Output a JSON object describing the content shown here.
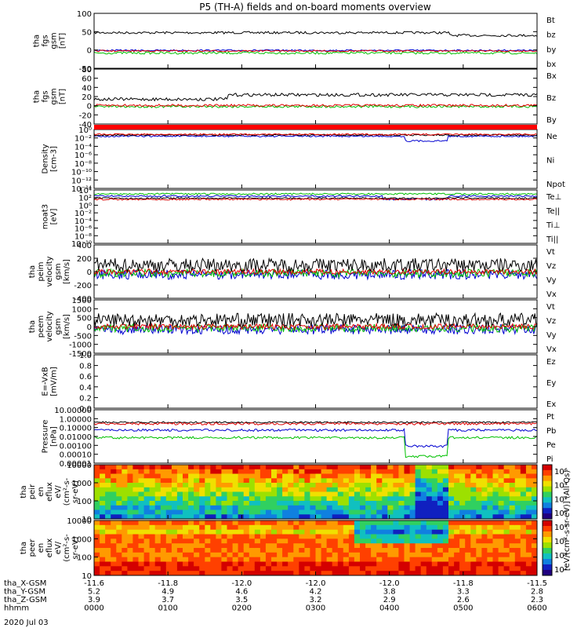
{
  "chart_data": {
    "type": "line",
    "title": "P5 (TH-A) fields and on-board moments overview",
    "date": "2020 Jul 03",
    "time_ticks": [
      "0000",
      "0100",
      "0200",
      "0300",
      "0400",
      "0500",
      "0600"
    ],
    "ephemeris": [
      {
        "label": "tha_X-GSM",
        "values": [
          "-11.6",
          "-11.8",
          "-12.0",
          "-12.0",
          "-12.0",
          "-11.8",
          "-11.5"
        ]
      },
      {
        "label": "tha_Y-GSM",
        "values": [
          "5.2",
          "4.9",
          "4.6",
          "4.2",
          "3.8",
          "3.3",
          "2.8"
        ]
      },
      {
        "label": "tha_Z-GSM",
        "values": [
          "3.9",
          "3.7",
          "3.5",
          "3.2",
          "2.9",
          "2.6",
          "2.3"
        ]
      },
      {
        "label": "hhmm",
        "values": [
          "0000",
          "0100",
          "0200",
          "0300",
          "0400",
          "0500",
          "0600"
        ]
      }
    ],
    "panels": [
      {
        "ylabel": [
          "tha",
          "fgs",
          "gsm",
          "[nT]"
        ],
        "yticks": [
          "100",
          "50",
          "0",
          "-50"
        ],
        "ylim": [
          -50,
          100
        ],
        "scale": "linear",
        "legend": [
          {
            "name": "Bt",
            "color": "#000000"
          },
          {
            "name": "bz",
            "color": "#e00000"
          },
          {
            "name": "by",
            "color": "#00c000"
          },
          {
            "name": "bx",
            "color": "#0000d0"
          }
        ]
      },
      {
        "ylabel": [
          "tha",
          "fgs",
          "gsm",
          "[nT]"
        ],
        "yticks": [
          "80",
          "60",
          "40",
          "20",
          "0",
          "-20",
          "-40"
        ],
        "ylim": [
          -40,
          80
        ],
        "scale": "linear",
        "legend": [
          {
            "name": "Bx",
            "color": "#000000"
          },
          {
            "name": "Bz",
            "color": "#e00000"
          },
          {
            "name": "By",
            "color": "#00c000"
          }
        ]
      },
      {
        "ylabel": [
          "Density",
          "[cm-3]"
        ],
        "yticks": [
          "10⁰",
          "10⁻²",
          "10⁻⁴",
          "10⁻⁶",
          "10⁻⁸",
          "10⁻¹⁰",
          "10⁻¹²",
          "10⁻¹⁴"
        ],
        "scale": "log",
        "legend": [
          {
            "name": "Ne",
            "color": "#e00000"
          },
          {
            "name": "Ni",
            "color": "#000000"
          },
          {
            "name": "Npot",
            "color": "#0000d0"
          }
        ]
      },
      {
        "ylabel": [
          "moat3",
          "[eV]"
        ],
        "yticks": [
          "10⁴",
          "10²",
          "10⁰",
          "10⁻²",
          "10⁻⁴",
          "10⁻⁶",
          "10⁻⁸",
          "10⁻¹⁰"
        ],
        "scale": "log",
        "legend": [
          {
            "name": "Te⊥",
            "color": "#e00000"
          },
          {
            "name": "Te||",
            "color": "#000000"
          },
          {
            "name": "Ti⊥",
            "color": "#0000d0"
          },
          {
            "name": "Ti||",
            "color": "#00c000"
          }
        ]
      },
      {
        "ylabel": [
          "tha",
          "peim",
          "velocity",
          "gsm",
          "[km/s]"
        ],
        "yticks": [
          "400",
          "200",
          "0",
          "-200",
          "-400"
        ],
        "ylim": [
          -400,
          400
        ],
        "scale": "linear",
        "legend": [
          {
            "name": "Vt",
            "color": "#000000"
          },
          {
            "name": "Vz",
            "color": "#e00000"
          },
          {
            "name": "Vy",
            "color": "#00c000"
          },
          {
            "name": "Vx",
            "color": "#0000d0"
          }
        ]
      },
      {
        "ylabel": [
          "tha",
          "peem",
          "velocity",
          "gsm",
          "[km/s]"
        ],
        "yticks": [
          "1500",
          "1000",
          "500",
          "0",
          "-500",
          "-1000",
          "-1500"
        ],
        "ylim": [
          -1500,
          1500
        ],
        "scale": "linear",
        "legend": [
          {
            "name": "Vt",
            "color": "#000000"
          },
          {
            "name": "Vz",
            "color": "#e00000"
          },
          {
            "name": "Vy",
            "color": "#00c000"
          },
          {
            "name": "Vx",
            "color": "#0000d0"
          }
        ]
      },
      {
        "ylabel": [
          "E=-VxB",
          "[mV/m]"
        ],
        "yticks": [
          "1.0",
          "0.8",
          "0.6",
          "0.4",
          "0.2",
          "0.0"
        ],
        "ylim": [
          0,
          1
        ],
        "scale": "linear",
        "legend": [
          {
            "name": "Ez",
            "color": "#e00000"
          },
          {
            "name": "Ey",
            "color": "#00c000"
          },
          {
            "name": "Ex",
            "color": "#0000d0"
          }
        ]
      },
      {
        "ylabel": [
          "Pressure",
          "[nPa]"
        ],
        "yticks": [
          "10.00000",
          "1.00000",
          "0.10000",
          "0.01000",
          "0.00100",
          "0.00010",
          "0.00001"
        ],
        "scale": "log",
        "legend": [
          {
            "name": "Pt",
            "color": "#000000"
          },
          {
            "name": "Pb",
            "color": "#e00000"
          },
          {
            "name": "Pe",
            "color": "#00c000"
          },
          {
            "name": "Pi",
            "color": "#0000d0"
          }
        ]
      },
      {
        "ylabel": [
          "tha",
          "peir",
          "en",
          "eflux",
          "eV/",
          "(cm²-s-",
          "sr-eV)"
        ],
        "yticks": [
          "10000",
          "1000",
          "100",
          "10"
        ],
        "scale": "log",
        "type": "heatmap"
      },
      {
        "ylabel": [
          "tha",
          "peer",
          "en",
          "eflux",
          "eV/",
          "(cm²-s-",
          "sr-eV)"
        ],
        "yticks": [
          "10000",
          "1000",
          "100",
          "10"
        ],
        "scale": "log",
        "type": "heatmap"
      }
    ],
    "colorbar_top": {
      "ticks": [
        "10⁶",
        "10⁴",
        "10²",
        "10⁰"
      ]
    },
    "colorbar_bottom": {
      "ticks": [
        "10⁸",
        "10⁶",
        "10⁴",
        "10²"
      ]
    },
    "colorbar_label": "[eV/(cm²-s-sr-eV)] (All Qs)"
  }
}
